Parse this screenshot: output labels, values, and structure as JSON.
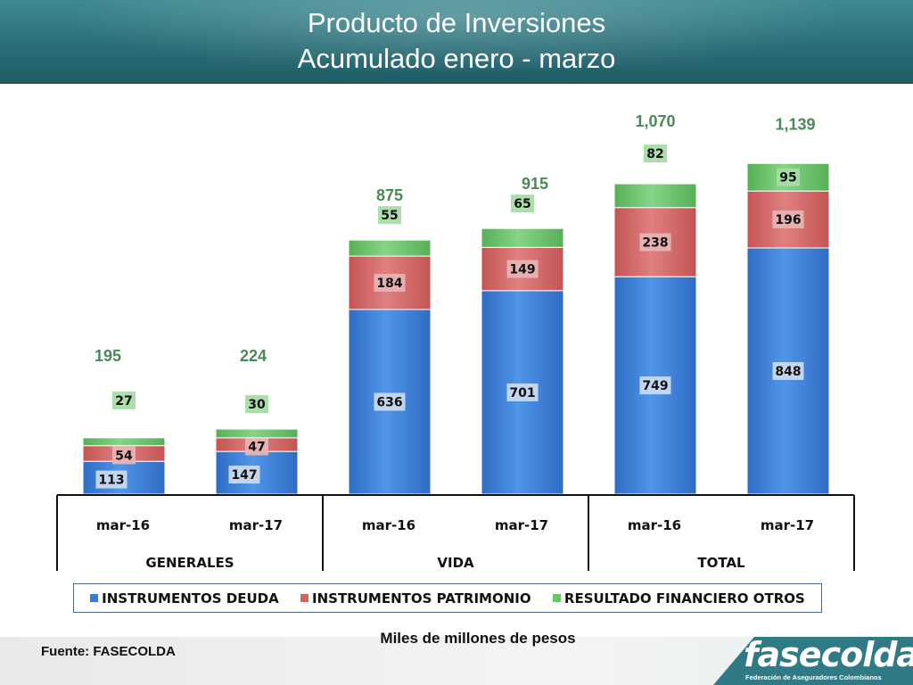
{
  "header": {
    "title_line1": "Producto de Inversiones",
    "title_line2": "Acumulado  enero - marzo"
  },
  "colors": {
    "deuda": "#3a7bd5",
    "patrimonio": "#d46464",
    "otros": "#6cc46c",
    "total_label": "#4a8a58"
  },
  "chart_data": {
    "type": "bar",
    "stacked": true,
    "categories": [
      "mar-16",
      "mar-17",
      "mar-16",
      "mar-17",
      "mar-16",
      "mar-17"
    ],
    "groups": [
      {
        "label": "GENERALES",
        "categories": [
          "mar-16",
          "mar-17"
        ]
      },
      {
        "label": "VIDA",
        "categories": [
          "mar-16",
          "mar-17"
        ]
      },
      {
        "label": "TOTAL",
        "categories": [
          "mar-16",
          "mar-17"
        ]
      }
    ],
    "series": [
      {
        "name": "INSTRUMENTOS DEUDA",
        "values": [
          113,
          147,
          636,
          701,
          749,
          848
        ]
      },
      {
        "name": "INSTRUMENTOS PATRIMONIO",
        "values": [
          54,
          47,
          184,
          149,
          238,
          196
        ]
      },
      {
        "name": "RESULTADO FINANCIERO OTROS",
        "values": [
          27,
          30,
          55,
          65,
          82,
          95
        ]
      }
    ],
    "totals": [
      195,
      224,
      875,
      915,
      "1,070",
      "1,139"
    ],
    "ylim": [
      0,
      1200
    ],
    "legend_position": "bottom"
  },
  "footer": {
    "unit": "Miles de millones de pesos",
    "source": "Fuente: FASECOLDA",
    "logo": "fasecolda",
    "logo_sub": "Federación de Aseguradores Colombianos"
  }
}
